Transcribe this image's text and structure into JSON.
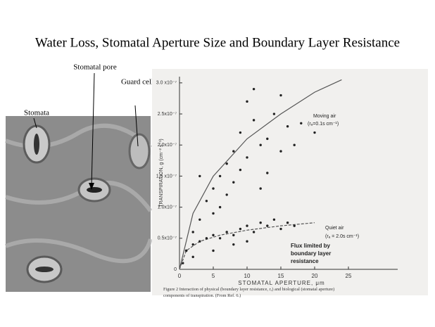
{
  "slide": {
    "title": "Water Loss, Stomatal Aperture Size and Boundary Layer Resistance",
    "photo_labels": [
      "Stomatal pore",
      "Stomata",
      "Guard cell"
    ]
  },
  "chart_data": {
    "type": "scatter",
    "xlabel": "STOMATAL APERTURE, μm",
    "ylabel": "TRANSPIRATION, g (cm⁻² s⁻¹)",
    "xlim": [
      0,
      30
    ],
    "ylim": [
      0,
      3.1e-07
    ],
    "xticks": [
      0,
      5,
      10,
      15,
      20,
      25
    ],
    "yticks": [
      0,
      {
        "value": 5e-08,
        "label": "0.5x10⁻⁷"
      },
      {
        "value": 1e-07,
        "label": "1.0x10⁻⁷"
      },
      {
        "value": 1.5e-07,
        "label": "1.5 x10⁻⁷"
      },
      {
        "value": 2e-07,
        "label": "2.0x10⁻⁷"
      },
      {
        "value": 2.5e-07,
        "label": "2.5x10⁻⁷"
      },
      {
        "value": 3e-07,
        "label": "3.0 x10⁻⁷"
      }
    ],
    "series": [
      {
        "color": "#222222",
        "x": [
          1,
          2,
          3,
          4,
          5,
          5,
          6,
          7,
          7,
          8,
          8,
          9,
          9,
          10,
          10,
          11,
          11,
          12,
          12,
          13,
          13,
          14,
          15,
          15,
          16,
          17,
          18,
          20,
          3,
          6
        ],
        "values": [
          3e-08,
          6e-08,
          8e-08,
          1.1e-07,
          1.3e-07,
          9e-08,
          1.5e-07,
          1.2e-07,
          1.7e-07,
          1.9e-07,
          1.4e-07,
          1.6e-07,
          2.2e-07,
          2.7e-07,
          1.8e-07,
          2.9e-07,
          2.4e-07,
          2e-07,
          1.3e-07,
          2.1e-07,
          1.55e-07,
          2.5e-07,
          2.8e-07,
          1.9e-07,
          2.3e-07,
          2e-07,
          2.35e-07,
          2.2e-07,
          1.5e-07,
          1e-07
        ]
      },
      {
        "color": "#222222",
        "x": [
          0.5,
          1,
          2,
          3,
          4,
          5,
          6,
          7,
          8,
          9,
          10,
          11,
          12,
          13,
          14,
          15,
          16,
          17,
          5,
          8,
          10,
          2
        ],
        "values": [
          1e-08,
          3e-08,
          4e-08,
          4.5e-08,
          5e-08,
          5.5e-08,
          5e-08,
          6e-08,
          5.5e-08,
          6.5e-08,
          7e-08,
          6e-08,
          7.5e-08,
          7e-08,
          8e-08,
          6.5e-08,
          7.5e-08,
          7e-08,
          3e-08,
          4e-08,
          4.5e-08,
          2e-08
        ]
      }
    ],
    "curves": [
      {
        "x": [
          0,
          2,
          5,
          10,
          15,
          20,
          24
        ],
        "values": [
          0,
          9e-08,
          1.5e-07,
          2.1e-07,
          2.5e-07,
          2.85e-07,
          3.05e-07
        ]
      },
      {
        "x": [
          0,
          1,
          3,
          6,
          10,
          15,
          20
        ],
        "values": [
          0,
          3e-08,
          4.5e-08,
          5.5e-08,
          6.3e-08,
          7e-08,
          7.5e-08
        ]
      }
    ],
    "annotations": [
      "Moving air",
      "(rₐ=0.1s cm⁻¹)",
      "Quiet air",
      "(rₐ = 2.0s cm⁻¹)",
      "Flux limited by",
      "boundary layer",
      "resistance"
    ],
    "caption": "Figure 2  Interaction of physical (boundary layer resistance, rₐ) and biological (stomatal aperture) components of transpiration. (From Ref. 6.)"
  }
}
